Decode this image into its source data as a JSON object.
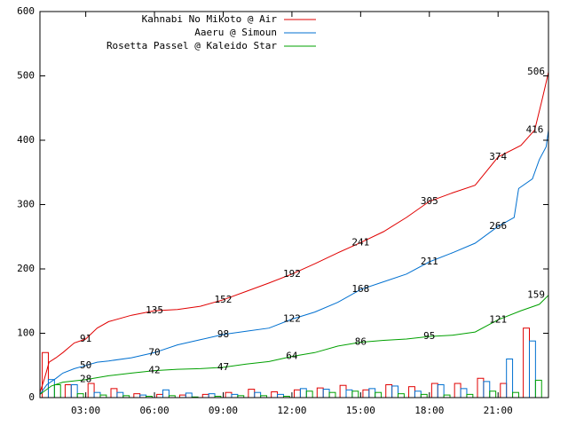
{
  "chart_data": {
    "type": "line",
    "xlim": [
      1,
      23.2
    ],
    "ylim": [
      0,
      600
    ],
    "xticks": [
      {
        "value": 3,
        "label": "03:00"
      },
      {
        "value": 6,
        "label": "06:00"
      },
      {
        "value": 9,
        "label": "09:00"
      },
      {
        "value": 12,
        "label": "12:00"
      },
      {
        "value": 15,
        "label": "15:00"
      },
      {
        "value": 18,
        "label": "18:00"
      },
      {
        "value": 21,
        "label": "21:00"
      }
    ],
    "yticks": [
      0,
      100,
      200,
      300,
      400,
      500,
      600
    ],
    "legend": "top",
    "bins": [
      1,
      2,
      3,
      4,
      5,
      6,
      7,
      8,
      9,
      10,
      11,
      12,
      13,
      14,
      15,
      16,
      17,
      18,
      19,
      20,
      21,
      22,
      23
    ],
    "series": [
      {
        "name": "Kannabi No Mikoto @ Air",
        "color": "#e00000",
        "x": [
          1.0,
          1.2,
          1.4,
          1.7,
          2.0,
          2.5,
          3.0,
          3.5,
          4.0,
          5.0,
          6.0,
          7.0,
          8.0,
          9.0,
          10.0,
          11.0,
          12.0,
          13.0,
          14.0,
          15.0,
          16.0,
          17.0,
          18.0,
          19.0,
          20.0,
          21.0,
          22.0,
          22.6,
          22.9,
          23.1,
          23.2
        ],
        "values": [
          8,
          30,
          55,
          62,
          70,
          85,
          91,
          108,
          118,
          128,
          135,
          137,
          142,
          152,
          165,
          178,
          192,
          208,
          225,
          241,
          258,
          280,
          305,
          318,
          330,
          374,
          392,
          416,
          460,
          490,
          506
        ],
        "value_labels": [
          null,
          null,
          null,
          null,
          null,
          null,
          "91",
          null,
          null,
          null,
          "135",
          null,
          null,
          "152",
          null,
          null,
          "192",
          null,
          null,
          "241",
          null,
          null,
          "305",
          null,
          null,
          "374",
          null,
          "416",
          null,
          null,
          "506"
        ],
        "hourly": [
          70,
          20,
          22,
          14,
          6,
          5,
          4,
          5,
          8,
          13,
          9,
          12,
          15,
          19,
          12,
          20,
          17,
          22,
          22,
          30,
          22,
          108
        ]
      },
      {
        "name": "Aaeru @ Simoun",
        "color": "#0070d0",
        "x": [
          1.0,
          1.3,
          1.7,
          2.0,
          2.5,
          3.0,
          3.5,
          4.0,
          5.0,
          6.0,
          7.0,
          8.0,
          9.0,
          10.0,
          11.0,
          12.0,
          13.0,
          14.0,
          15.0,
          16.0,
          17.0,
          18.0,
          19.0,
          20.0,
          21.0,
          21.7,
          21.9,
          22.5,
          22.8,
          23.1,
          23.2
        ],
        "values": [
          5,
          20,
          30,
          38,
          45,
          50,
          55,
          57,
          62,
          70,
          82,
          90,
          98,
          103,
          108,
          122,
          133,
          148,
          168,
          180,
          192,
          211,
          225,
          240,
          266,
          280,
          325,
          340,
          370,
          390,
          416
        ],
        "value_labels": [
          null,
          null,
          null,
          null,
          null,
          "50",
          null,
          null,
          null,
          "70",
          null,
          null,
          "98",
          null,
          null,
          "122",
          null,
          null,
          "168",
          null,
          null,
          "211",
          null,
          null,
          "266",
          null,
          null,
          null,
          null,
          null,
          null
        ],
        "hourly": [
          28,
          20,
          8,
          8,
          4,
          12,
          7,
          6,
          5,
          8,
          5,
          14,
          13,
          12,
          14,
          18,
          10,
          20,
          14,
          25,
          60,
          88
        ]
      },
      {
        "name": "Rosetta Passel @ Kaleido Star",
        "color": "#00a000",
        "x": [
          1.0,
          1.5,
          2.0,
          3.0,
          4.0,
          5.0,
          6.0,
          7.0,
          8.0,
          9.0,
          10.0,
          11.0,
          12.0,
          13.0,
          14.0,
          15.0,
          16.0,
          17.0,
          18.0,
          19.0,
          20.0,
          21.0,
          22.0,
          22.8,
          23.2
        ],
        "values": [
          5,
          18,
          24,
          28,
          34,
          38,
          42,
          44,
          45,
          47,
          52,
          56,
          64,
          70,
          80,
          86,
          89,
          91,
          95,
          97,
          102,
          121,
          135,
          145,
          159
        ],
        "value_labels": [
          null,
          null,
          null,
          "28",
          null,
          null,
          "42",
          null,
          null,
          "47",
          null,
          null,
          "64",
          null,
          null,
          "86",
          null,
          null,
          "95",
          null,
          null,
          "121",
          null,
          null,
          "159"
        ],
        "hourly": [
          20,
          6,
          4,
          3,
          2,
          3,
          1,
          2,
          3,
          3,
          2,
          10,
          8,
          10,
          8,
          6,
          5,
          4,
          5,
          10,
          8,
          27
        ]
      }
    ]
  }
}
